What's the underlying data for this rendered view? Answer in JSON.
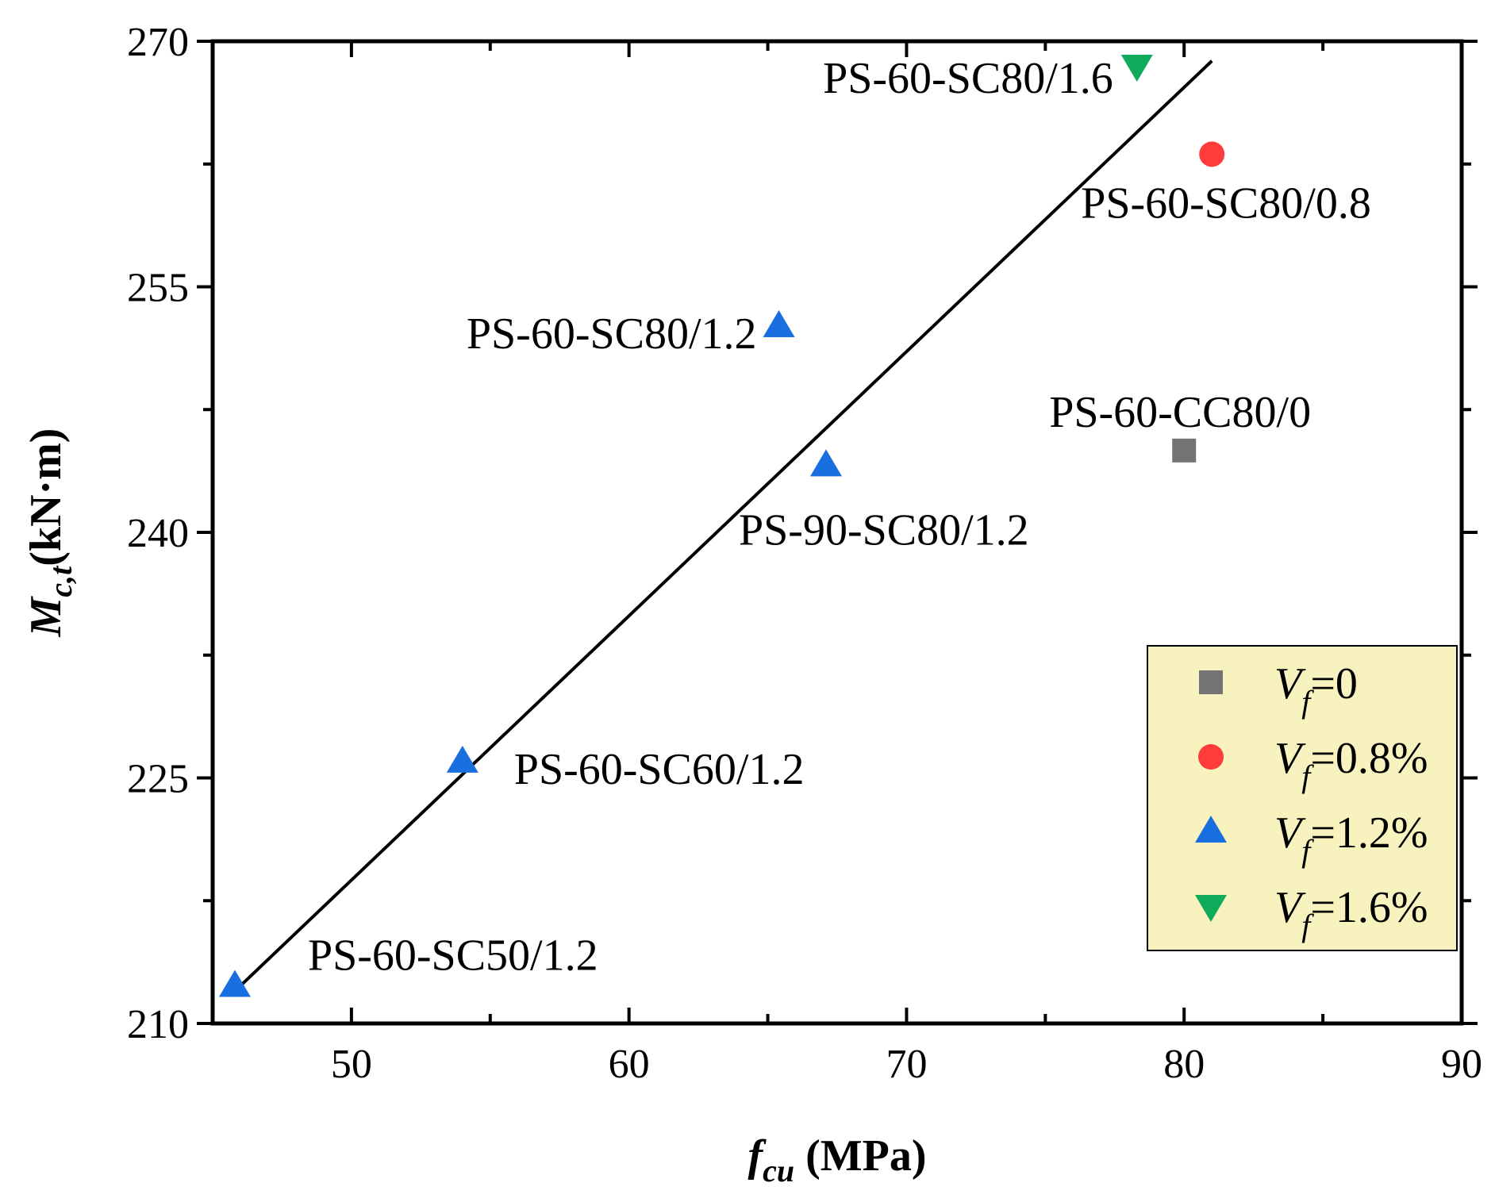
{
  "chart_data": {
    "type": "scatter",
    "xlabel": {
      "main": "f",
      "sub": "cu",
      "unit": " (MPa)"
    },
    "ylabel": {
      "main": "M",
      "sub": "c,t",
      "unit": "(kN·m)"
    },
    "xlim": [
      45,
      90
    ],
    "ylim": [
      210,
      270
    ],
    "xticks": [
      50,
      60,
      70,
      80,
      90
    ],
    "yticks": [
      210,
      225,
      240,
      255,
      270
    ],
    "series": [
      {
        "name": "Vf=0",
        "legend_main": "V",
        "legend_sub": "f",
        "legend_rest": "=0",
        "marker": "square",
        "color": "#737373",
        "points": [
          {
            "x": 80.0,
            "y": 245.0,
            "label": "PS-60-CC80/0"
          }
        ]
      },
      {
        "name": "Vf=0.8%",
        "legend_main": "V",
        "legend_sub": "f",
        "legend_rest": "=0.8%",
        "marker": "circle",
        "color": "#ff3b3b",
        "points": [
          {
            "x": 81.0,
            "y": 263.1,
            "label": "PS-60-SC80/0.8"
          }
        ]
      },
      {
        "name": "Vf=1.2%",
        "legend_main": "V",
        "legend_sub": "f",
        "legend_rest": "=1.2%",
        "marker": "triangle-up",
        "color": "#1a6fe0",
        "points": [
          {
            "x": 45.8,
            "y": 212.3,
            "label": "PS-60-SC50/1.2"
          },
          {
            "x": 54.0,
            "y": 226.0,
            "label": "PS-60-SC60/1.2"
          },
          {
            "x": 65.4,
            "y": 252.6,
            "label": "PS-60-SC80/1.2"
          },
          {
            "x": 67.1,
            "y": 244.1,
            "label": "PS-90-SC80/1.2"
          }
        ]
      },
      {
        "name": "Vf=1.6%",
        "legend_main": "V",
        "legend_sub": "f",
        "legend_rest": "=1.6%",
        "marker": "triangle-down",
        "color": "#0faa5a",
        "points": [
          {
            "x": 78.3,
            "y": 268.5,
            "label": "PS-60-SC80/1.6"
          }
        ]
      }
    ],
    "fit_line": {
      "x": [
        46.0,
        81.0
      ],
      "y": [
        212.3,
        268.8
      ]
    },
    "legend_position": "bottom-right",
    "legend_background": "#f7f2be"
  }
}
